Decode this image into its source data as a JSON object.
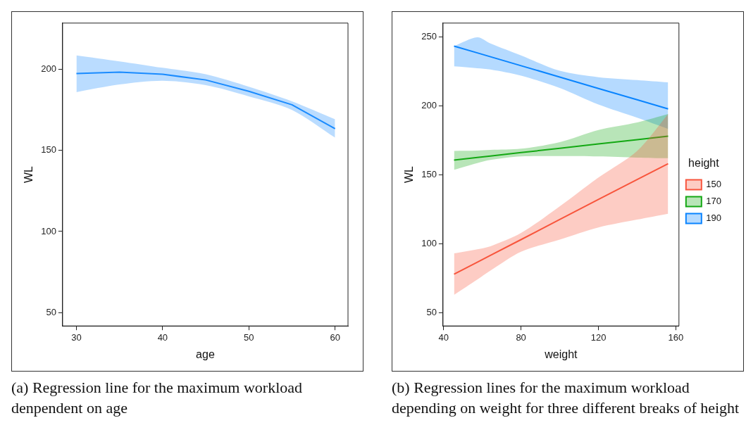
{
  "chart_data": [
    {
      "type": "line",
      "xlabel": "age",
      "ylabel": "WL",
      "xlim": [
        28.4,
        61.5
      ],
      "ylim": [
        41.7,
        228.6
      ],
      "xticks": [
        30,
        40,
        50,
        60
      ],
      "yticks": [
        50,
        100,
        150,
        200
      ],
      "grid": false,
      "legend": false,
      "series": [
        {
          "color": "#1a8cff",
          "x": [
            30,
            35,
            40,
            45,
            50,
            55,
            60
          ],
          "values": [
            197.5,
            198.3,
            197,
            193.5,
            186.5,
            178.2,
            163.4
          ],
          "lower": [
            186,
            190.7,
            193,
            190.3,
            183.4,
            175,
            157.9
          ],
          "upper": [
            208.7,
            205,
            201,
            197,
            189.3,
            180.3,
            169.2
          ]
        }
      ],
      "annotations": [
        "(a) Regression line for the maximum workload denpendent on age"
      ]
    },
    {
      "type": "line",
      "xlabel": "weight",
      "ylabel": "WL",
      "xlim": [
        39.7,
        161.6
      ],
      "ylim": [
        40.4,
        260
      ],
      "xticks": [
        40,
        80,
        120,
        160
      ],
      "yticks": [
        50,
        100,
        150,
        200,
        250
      ],
      "grid": false,
      "legend": "right",
      "legend_title": "height",
      "series": [
        {
          "name": "150",
          "color": "#f8553d",
          "x": [
            45.4,
            57.4,
            64.2,
            80,
            100,
            120,
            140,
            156
          ],
          "values": [
            77.9,
            86.6,
            91.6,
            103,
            117.6,
            132.1,
            146.6,
            158.1
          ],
          "lower": [
            62.9,
            74,
            80.5,
            94.2,
            103,
            111.8,
            117.5,
            121.8
          ],
          "upper": [
            93,
            96,
            98.2,
            107.8,
            127.1,
            148,
            167.3,
            194.1
          ]
        },
        {
          "name": "170",
          "color": "#14a814",
          "x": [
            45.4,
            57.4,
            64.2,
            80,
            100,
            120,
            140,
            156
          ],
          "values": [
            160.7,
            162.6,
            163.6,
            166.1,
            169.2,
            172.4,
            175.5,
            178
          ],
          "lower": [
            153.6,
            158.5,
            160.8,
            163.3,
            163.6,
            163.3,
            162.5,
            162
          ],
          "upper": [
            167.3,
            167.5,
            168,
            168.9,
            173.7,
            182.5,
            188,
            194.1
          ]
        },
        {
          "name": "190",
          "color": "#0a84ff",
          "x": [
            45.4,
            57.4,
            64.2,
            80,
            100,
            120,
            140,
            156
          ],
          "values": [
            243.3,
            238.4,
            235.6,
            229.1,
            220.9,
            212.6,
            204.4,
            197.8
          ],
          "lower": [
            228.6,
            227.3,
            226.4,
            221.9,
            213,
            201,
            191.4,
            183.3
          ],
          "upper": [
            243.3,
            249.7,
            245.2,
            236.5,
            225.4,
            220.8,
            218.7,
            217
          ]
        }
      ],
      "annotations": [
        "(b) Regression lines for the maximum workload depending on weight for three different breaks of height"
      ]
    }
  ]
}
